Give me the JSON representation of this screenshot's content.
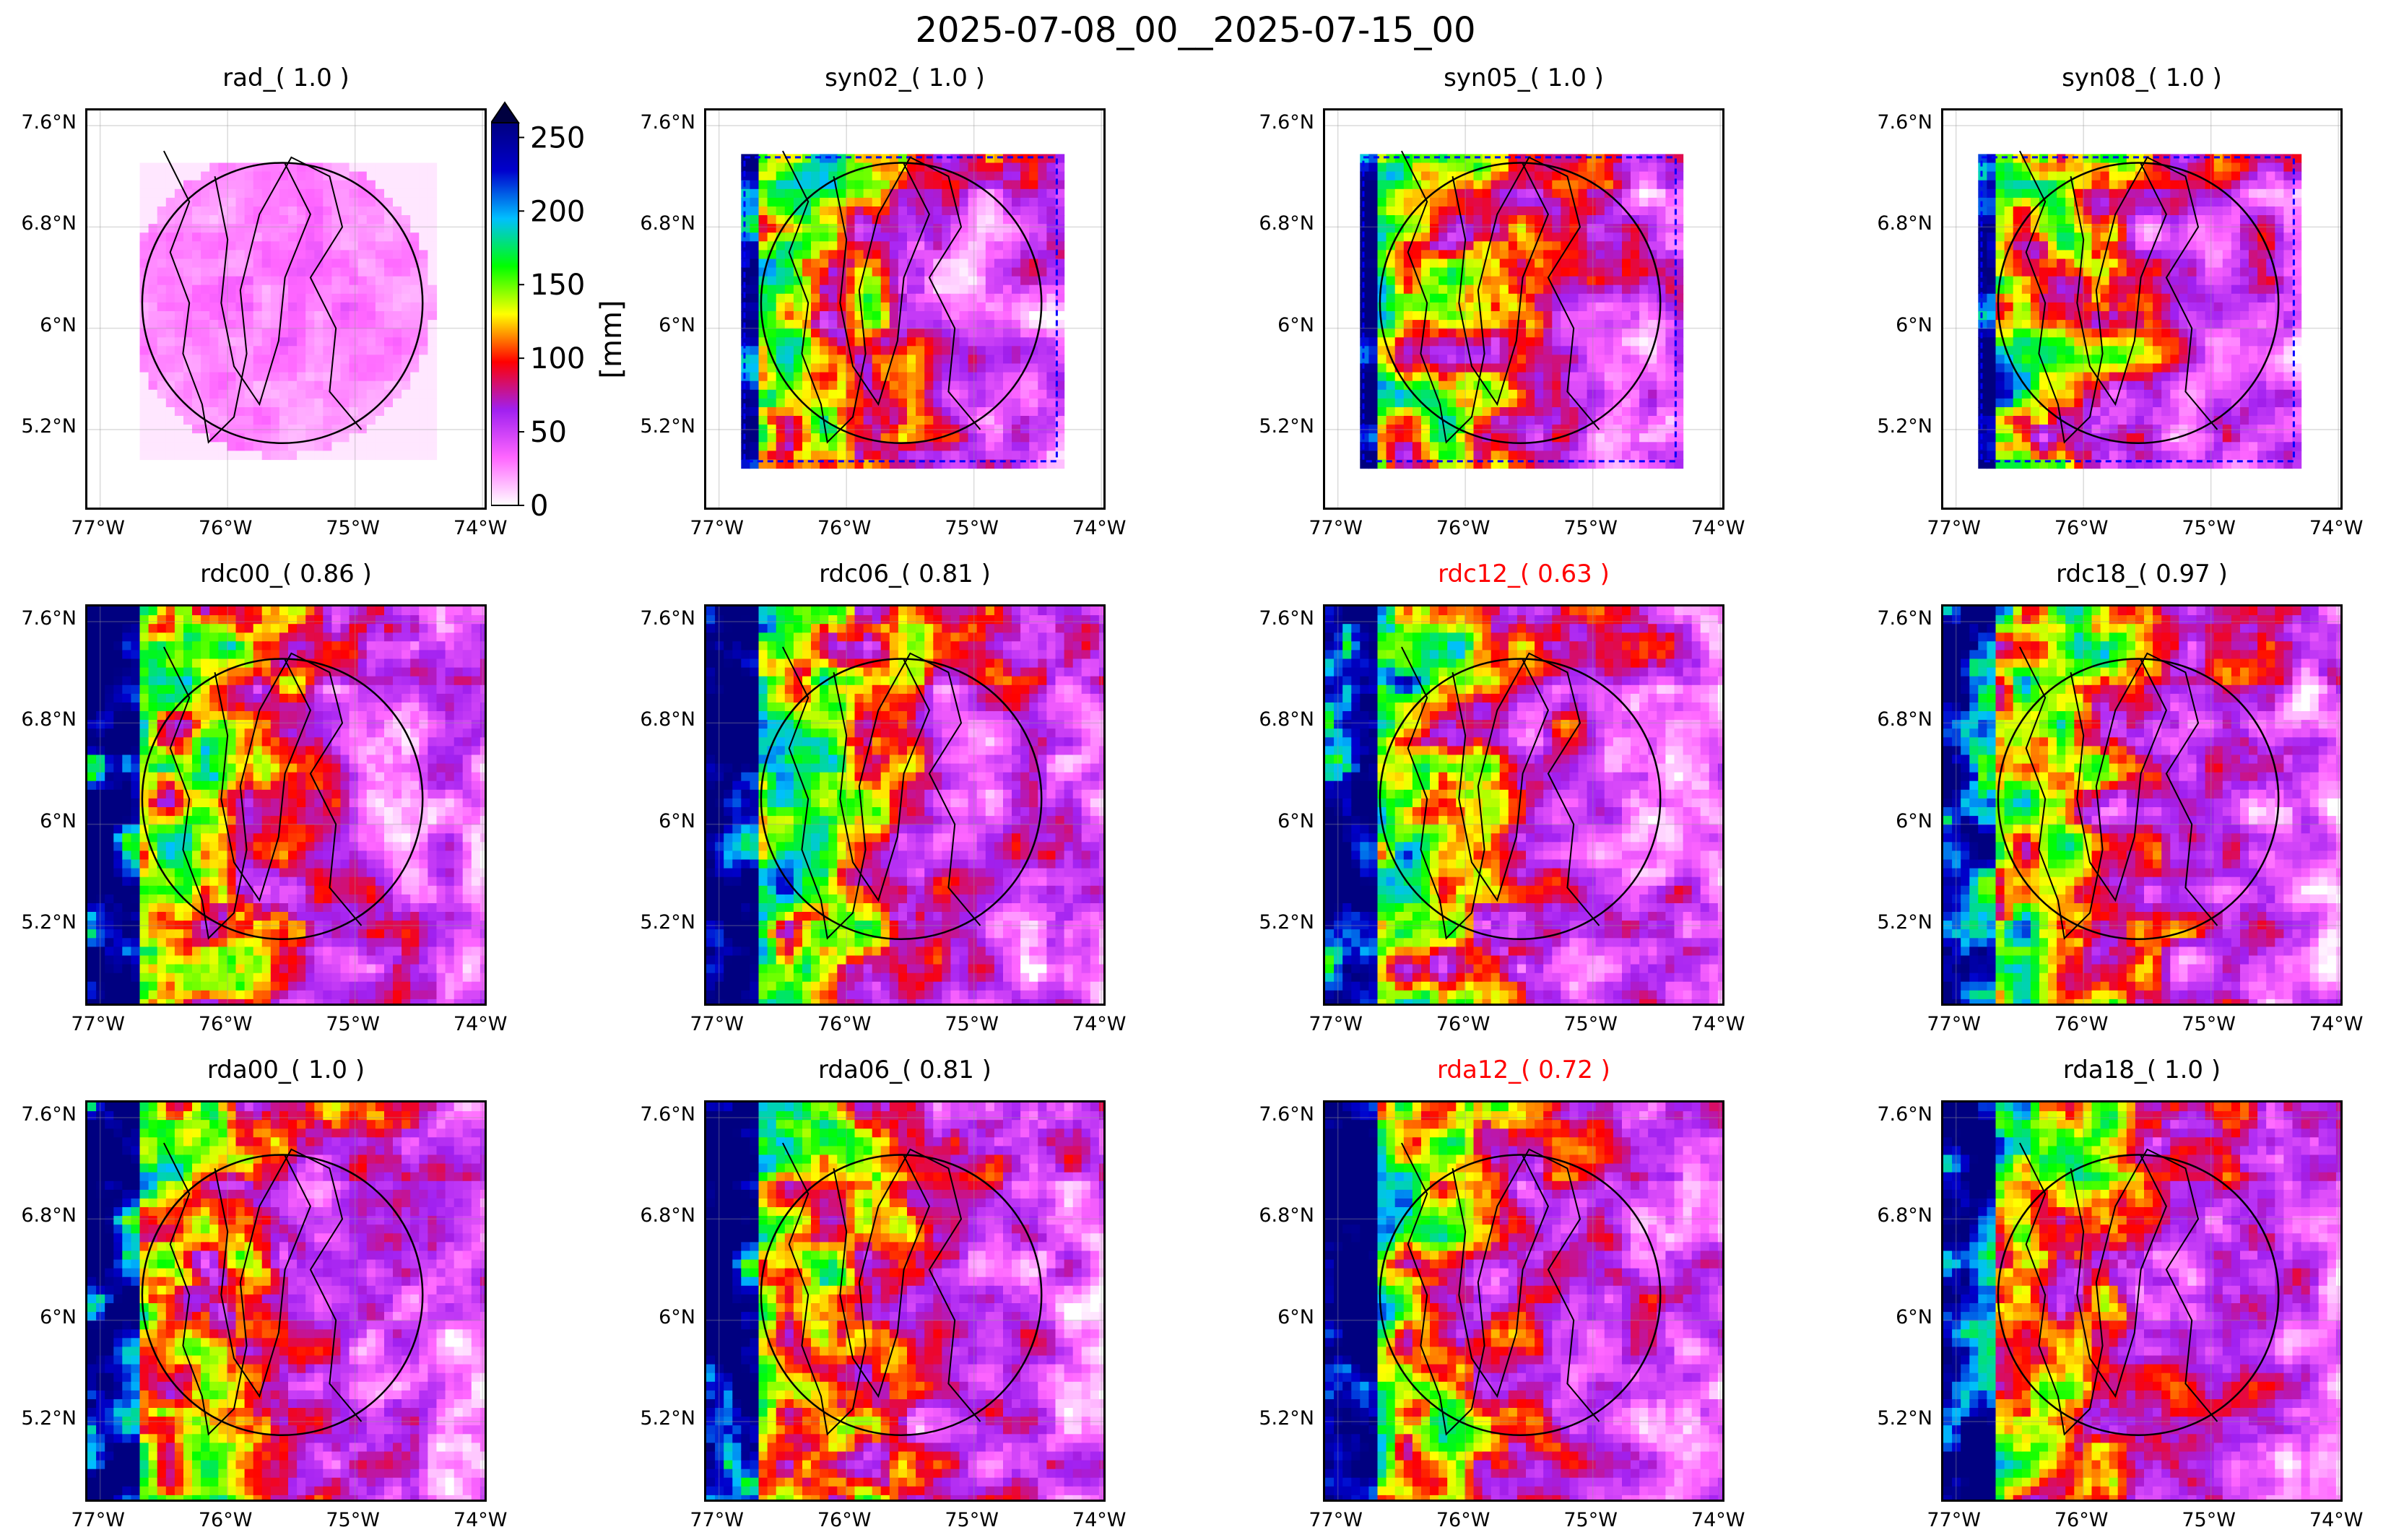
{
  "suptitle": "2025-07-08_00__2025-07-15_00",
  "colorbar": {
    "label": "[mm]",
    "ticks": [
      "0",
      "50",
      "100",
      "150",
      "200",
      "250"
    ],
    "range": [
      0,
      260
    ],
    "extend": "max",
    "colors": [
      "#ffffff",
      "#ff66ff",
      "#a020f0",
      "#ff0000",
      "#ffff00",
      "#00ff00",
      "#00bfff",
      "#0000cd",
      "#000080"
    ]
  },
  "axes": {
    "x_ticks": [
      "77°W",
      "76°W",
      "75°W",
      "74°W"
    ],
    "y_ticks": [
      "7.6°N",
      "6.8°N",
      "6°N",
      "5.2°N"
    ]
  },
  "chart_data": [
    {
      "type": "heatmap",
      "title": "rad_( 1.0 )",
      "title_color": "#000000",
      "field": "rad"
    },
    {
      "type": "heatmap",
      "title": "syn02_( 1.0 )",
      "title_color": "#000000",
      "field": "syn"
    },
    {
      "type": "heatmap",
      "title": "syn05_( 1.0 )",
      "title_color": "#000000",
      "field": "syn"
    },
    {
      "type": "heatmap",
      "title": "syn08_( 1.0 )",
      "title_color": "#000000",
      "field": "syn"
    },
    {
      "type": "heatmap",
      "title": "rdc00_( 0.86 )",
      "title_color": "#000000",
      "field": "full"
    },
    {
      "type": "heatmap",
      "title": "rdc06_( 0.81 )",
      "title_color": "#000000",
      "field": "full"
    },
    {
      "type": "heatmap",
      "title": "rdc12_( 0.63 )",
      "title_color": "#ff0000",
      "field": "full"
    },
    {
      "type": "heatmap",
      "title": "rdc18_( 0.97 )",
      "title_color": "#000000",
      "field": "full"
    },
    {
      "type": "heatmap",
      "title": "rda00_( 1.0 )",
      "title_color": "#000000",
      "field": "full"
    },
    {
      "type": "heatmap",
      "title": "rda06_( 0.81 )",
      "title_color": "#000000",
      "field": "full"
    },
    {
      "type": "heatmap",
      "title": "rda12_( 0.72 )",
      "title_color": "#ff0000",
      "field": "full"
    },
    {
      "type": "heatmap",
      "title": "rda18_( 1.0 )",
      "title_color": "#000000",
      "field": "full"
    }
  ]
}
